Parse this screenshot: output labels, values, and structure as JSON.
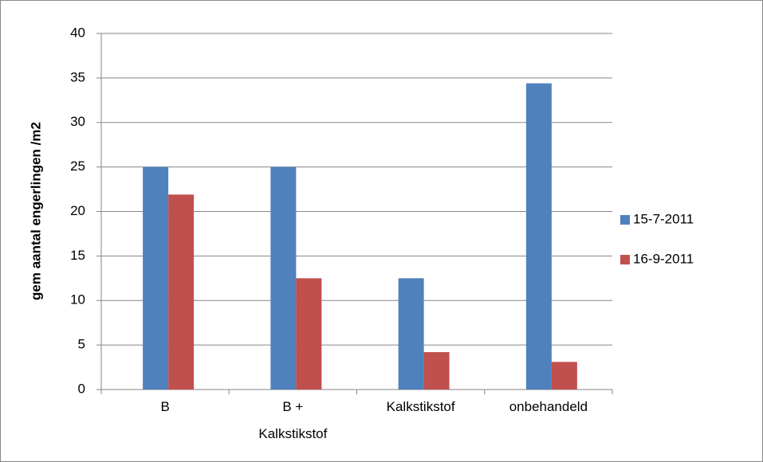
{
  "chart_data": {
    "type": "bar",
    "y_label": "gem aantal engerlingen /m2",
    "categories": [
      "B",
      "B + Kalkstikstof",
      "Kalkstikstof",
      "onbehandeld"
    ],
    "series": [
      {
        "name": "15-7-2011",
        "color": "#4f81bd",
        "values": [
          25,
          25,
          12.5,
          34.4
        ]
      },
      {
        "name": "16-9-2011",
        "color": "#c0504d",
        "values": [
          21.9,
          12.5,
          4.2,
          3.1
        ]
      }
    ],
    "ylim": [
      0,
      40
    ],
    "yticks": [
      0,
      5,
      10,
      15,
      20,
      25,
      30,
      35,
      40
    ],
    "grid": true,
    "legend": "right"
  }
}
